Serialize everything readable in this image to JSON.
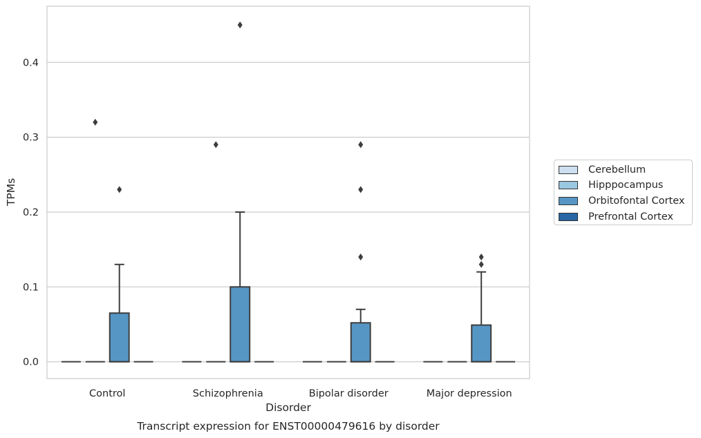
{
  "chart_data": {
    "type": "boxplot",
    "title": "Transcript expression for ENST00000479616 by disorder",
    "xlabel": "Disorder",
    "ylabel": "TPMs",
    "ylim": [
      -0.0225,
      0.475
    ],
    "yticks": [
      0.0,
      0.1,
      0.2,
      0.3,
      0.4
    ],
    "ytick_labels": [
      "0.0",
      "0.1",
      "0.2",
      "0.3",
      "0.4"
    ],
    "grid": "horizontal",
    "legend_placement": "right-center",
    "categories": [
      "Control",
      "Schizophrenia",
      "Bipolar disorder",
      "Major depression"
    ],
    "series": [
      {
        "name": "Cerebellum",
        "color": "#cddff0",
        "boxes": [
          {
            "q1": 0,
            "median": 0,
            "q3": 0,
            "whislo": 0,
            "whishi": 0,
            "fliers": []
          },
          {
            "q1": 0,
            "median": 0,
            "q3": 0,
            "whislo": 0,
            "whishi": 0,
            "fliers": []
          },
          {
            "q1": 0,
            "median": 0,
            "q3": 0,
            "whislo": 0,
            "whishi": 0,
            "fliers": []
          },
          {
            "q1": 0,
            "median": 0,
            "q3": 0,
            "whislo": 0,
            "whishi": 0,
            "fliers": []
          }
        ]
      },
      {
        "name": "Hipppocampus",
        "color": "#9ac8e0",
        "boxes": [
          {
            "q1": 0,
            "median": 0,
            "q3": 0,
            "whislo": 0,
            "whishi": 0,
            "fliers": [
              0.32
            ]
          },
          {
            "q1": 0,
            "median": 0,
            "q3": 0,
            "whislo": 0,
            "whishi": 0,
            "fliers": [
              0.29
            ]
          },
          {
            "q1": 0,
            "median": 0,
            "q3": 0,
            "whislo": 0,
            "whishi": 0,
            "fliers": []
          },
          {
            "q1": 0,
            "median": 0,
            "q3": 0,
            "whislo": 0,
            "whishi": 0,
            "fliers": []
          }
        ]
      },
      {
        "name": "Orbitofontal Cortex",
        "color": "#5596c5",
        "boxes": [
          {
            "q1": 0,
            "median": 0,
            "q3": 0.065,
            "whislo": 0,
            "whishi": 0.13,
            "fliers": [
              0.23
            ]
          },
          {
            "q1": 0,
            "median": 0,
            "q3": 0.1,
            "whislo": 0,
            "whishi": 0.2,
            "fliers": [
              0.45
            ]
          },
          {
            "q1": 0,
            "median": 0,
            "q3": 0.052,
            "whislo": 0,
            "whishi": 0.07,
            "fliers": [
              0.14,
              0.23,
              0.29
            ]
          },
          {
            "q1": 0,
            "median": 0,
            "q3": 0.049,
            "whislo": 0,
            "whishi": 0.12,
            "fliers": [
              0.13,
              0.14
            ]
          }
        ]
      },
      {
        "name": "Prefrontal Cortex",
        "color": "#2866a6",
        "boxes": [
          {
            "q1": 0,
            "median": 0,
            "q3": 0,
            "whislo": 0,
            "whishi": 0,
            "fliers": []
          },
          {
            "q1": 0,
            "median": 0,
            "q3": 0,
            "whislo": 0,
            "whishi": 0,
            "fliers": []
          },
          {
            "q1": 0,
            "median": 0,
            "q3": 0,
            "whislo": 0,
            "whishi": 0,
            "fliers": []
          },
          {
            "q1": 0,
            "median": 0,
            "q3": 0,
            "whislo": 0,
            "whishi": 0,
            "fliers": []
          }
        ]
      }
    ]
  }
}
